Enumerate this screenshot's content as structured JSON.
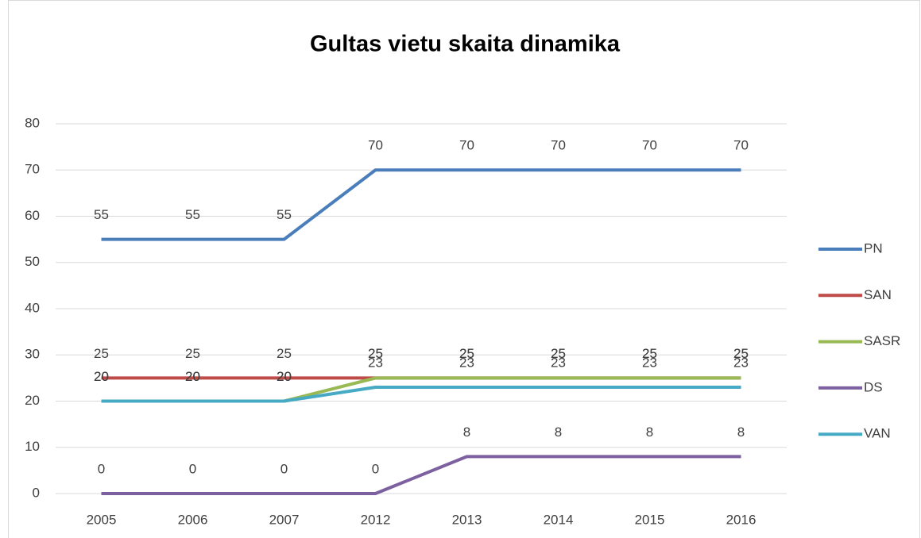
{
  "chart_data": {
    "type": "line",
    "title": "Gultas vietu skaita dinamika",
    "categories": [
      "2005",
      "2006",
      "2007",
      "2012",
      "2013",
      "2014",
      "2015",
      "2016"
    ],
    "series": [
      {
        "name": "PN",
        "color": "#4a7ebb",
        "values": [
          55,
          55,
          55,
          70,
          70,
          70,
          70,
          70
        ]
      },
      {
        "name": "SAN",
        "color": "#be4b48",
        "values": [
          25,
          25,
          25,
          25,
          25,
          25,
          25,
          25
        ]
      },
      {
        "name": "SASR",
        "color": "#98b954",
        "values": [
          20,
          20,
          20,
          25,
          25,
          25,
          25,
          25
        ]
      },
      {
        "name": "DS",
        "color": "#7d60a0",
        "values": [
          0,
          0,
          0,
          0,
          8,
          8,
          8,
          8
        ]
      },
      {
        "name": "VAN",
        "color": "#46aac5",
        "values": [
          20,
          20,
          20,
          23,
          23,
          23,
          23,
          23
        ]
      }
    ],
    "ylim": [
      0,
      80
    ],
    "yticks": [
      0,
      10,
      20,
      30,
      40,
      50,
      60,
      70,
      80
    ],
    "grid": true,
    "legend": "right"
  }
}
